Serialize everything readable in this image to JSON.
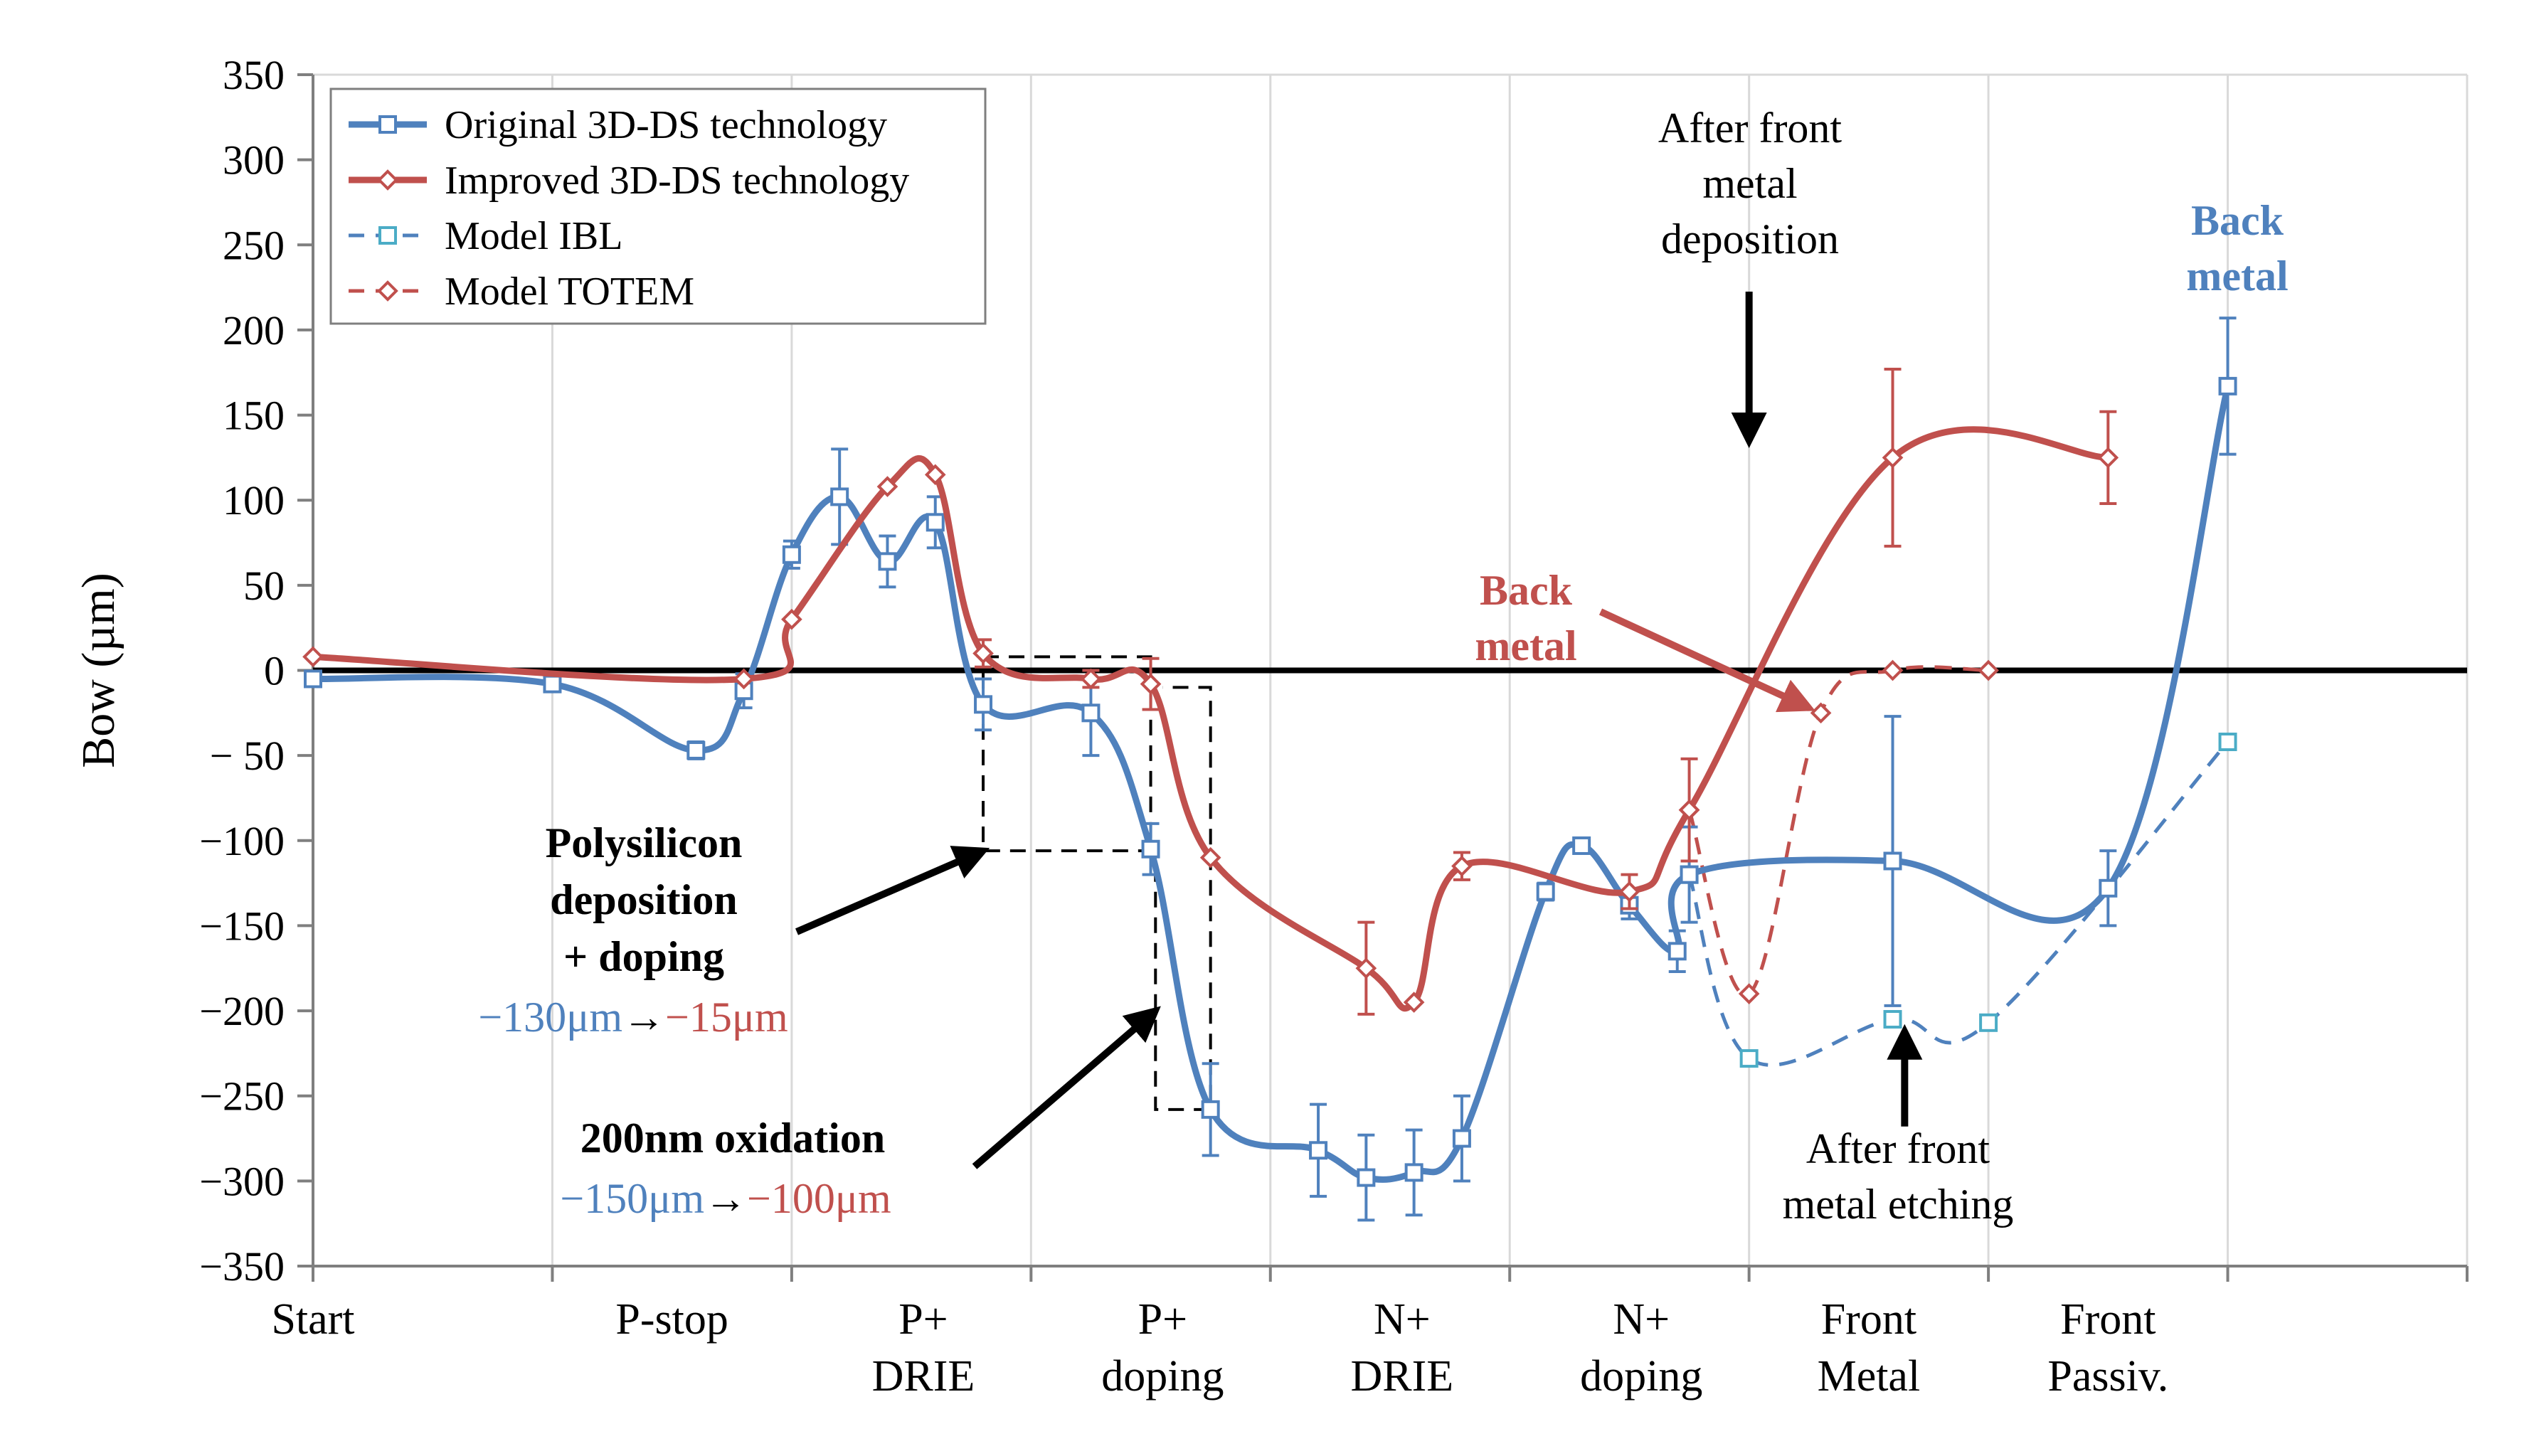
{
  "chart_data": {
    "type": "line",
    "title": "",
    "xlabel": "",
    "ylabel": "Bow (µm)",
    "ylim": [
      -350,
      350
    ],
    "yticks": [
      350,
      300,
      250,
      200,
      150,
      100,
      50,
      0,
      -50,
      -100,
      -150,
      -200,
      -250,
      -300,
      -350
    ],
    "ytick_labels": [
      "350",
      "300",
      "250",
      "200",
      "150",
      "100",
      "50",
      "0",
      "− 50",
      "−100",
      "−150",
      "−200",
      "−250",
      "−300",
      "−350"
    ],
    "xlim": [
      0,
      9
    ],
    "categories": [
      {
        "lines": [
          "Start"
        ],
        "x": 0
      },
      {
        "lines": [
          "P-stop"
        ],
        "x": 1.5
      },
      {
        "lines": [
          "P+",
          "DRIE"
        ],
        "x": 2.55
      },
      {
        "lines": [
          "P+",
          "doping"
        ],
        "x": 3.55
      },
      {
        "lines": [
          "N+",
          "DRIE"
        ],
        "x": 4.55
      },
      {
        "lines": [
          "N+",
          "doping"
        ],
        "x": 5.55
      },
      {
        "lines": [
          "Front",
          "Metal"
        ],
        "x": 6.5
      },
      {
        "lines": [
          "Front",
          "Passiv."
        ],
        "x": 7.5
      }
    ],
    "x_gridlines": [
      1,
      2,
      3,
      4,
      5,
      6,
      7,
      8,
      9
    ],
    "series": [
      {
        "name": "Original 3D-DS technology",
        "color": "#4f81bd",
        "style": "solid",
        "marker": "square",
        "points": [
          {
            "x": 0,
            "y": -5
          },
          {
            "x": 1,
            "y": -8
          },
          {
            "x": 1.6,
            "y": -47,
            "err": 5
          },
          {
            "x": 1.8,
            "y": -12,
            "err": 10
          },
          {
            "x": 2.0,
            "y": 68,
            "err": 8
          },
          {
            "x": 2.2,
            "y": 102,
            "err": 28
          },
          {
            "x": 2.4,
            "y": 64,
            "err": 15
          },
          {
            "x": 2.6,
            "y": 87,
            "err": 15
          },
          {
            "x": 2.8,
            "y": -20,
            "err": 15
          },
          {
            "x": 3.25,
            "y": -25,
            "err": 25
          },
          {
            "x": 3.5,
            "y": -105,
            "err": 15
          },
          {
            "x": 3.75,
            "y": -258,
            "err": 27
          },
          {
            "x": 4.2,
            "y": -282,
            "err": 27
          },
          {
            "x": 4.4,
            "y": -298,
            "err": 25
          },
          {
            "x": 4.6,
            "y": -295,
            "err": 25
          },
          {
            "x": 4.8,
            "y": -275,
            "err": 25
          },
          {
            "x": 5.15,
            "y": -130,
            "err": 5
          },
          {
            "x": 5.3,
            "y": -103,
            "err": 3
          },
          {
            "x": 5.5,
            "y": -138,
            "err": 8
          },
          {
            "x": 5.7,
            "y": -165,
            "err": 12
          },
          {
            "x": 5.75,
            "y": -120,
            "err": 28
          },
          {
            "x": 6.6,
            "y": -112,
            "err": 85
          },
          {
            "x": 7.5,
            "y": -128,
            "err": 22
          },
          {
            "x": 8.0,
            "y": 167,
            "err": 40
          }
        ]
      },
      {
        "name": "Improved 3D-DS technology",
        "color": "#c0504d",
        "style": "solid",
        "marker": "diamond",
        "points": [
          {
            "x": 0,
            "y": 8
          },
          {
            "x": 1.8,
            "y": -5
          },
          {
            "x": 2.0,
            "y": 30
          },
          {
            "x": 2.4,
            "y": 108
          },
          {
            "x": 2.6,
            "y": 115
          },
          {
            "x": 2.8,
            "y": 10,
            "err": 8
          },
          {
            "x": 3.25,
            "y": -5,
            "err": 5
          },
          {
            "x": 3.5,
            "y": -8,
            "err": 15
          },
          {
            "x": 3.75,
            "y": -110
          },
          {
            "x": 4.4,
            "y": -175,
            "err": 27
          },
          {
            "x": 4.6,
            "y": -195
          },
          {
            "x": 4.8,
            "y": -115,
            "err": 8
          },
          {
            "x": 5.5,
            "y": -130,
            "err": 10
          },
          {
            "x": 5.75,
            "y": -82,
            "err": 30
          },
          {
            "x": 6.6,
            "y": 125,
            "err": 52
          },
          {
            "x": 7.5,
            "y": 125,
            "err": 27
          }
        ]
      },
      {
        "name": "Model IBL",
        "color": "#4f81bd",
        "marker_color": "#4bacc6",
        "style": "dashed",
        "marker": "square",
        "points": [
          {
            "x": 5.75,
            "y": -120
          },
          {
            "x": 6.0,
            "y": -228
          },
          {
            "x": 6.6,
            "y": -205
          },
          {
            "x": 7.0,
            "y": -207
          },
          {
            "x": 8.0,
            "y": -42
          }
        ]
      },
      {
        "name": "Model TOTEM",
        "color": "#c0504d",
        "style": "dashed",
        "marker": "diamond",
        "points": [
          {
            "x": 5.75,
            "y": -82
          },
          {
            "x": 6.0,
            "y": -190
          },
          {
            "x": 6.3,
            "y": -25
          },
          {
            "x": 6.6,
            "y": 0
          },
          {
            "x": 7.0,
            "y": 0
          }
        ]
      }
    ],
    "zero_line": true,
    "legend_position": "top-left",
    "annotations": {
      "front_metal_dep": [
        "After front",
        "metal",
        "deposition"
      ],
      "back_metal_blue": [
        "Back",
        "metal"
      ],
      "back_metal_red": [
        "Back",
        "metal"
      ],
      "polysilicon": [
        "Polysilicon",
        "deposition",
        "+ doping"
      ],
      "poly_values": {
        "blue": "−130μm",
        "arrow": "→",
        "red": "−15μm"
      },
      "oxidation": "200nm oxidation",
      "ox_values": {
        "blue": "−150μm",
        "arrow": "→",
        "red": "−100μm"
      },
      "front_metal_etch": [
        "After front",
        "metal etching"
      ]
    }
  }
}
